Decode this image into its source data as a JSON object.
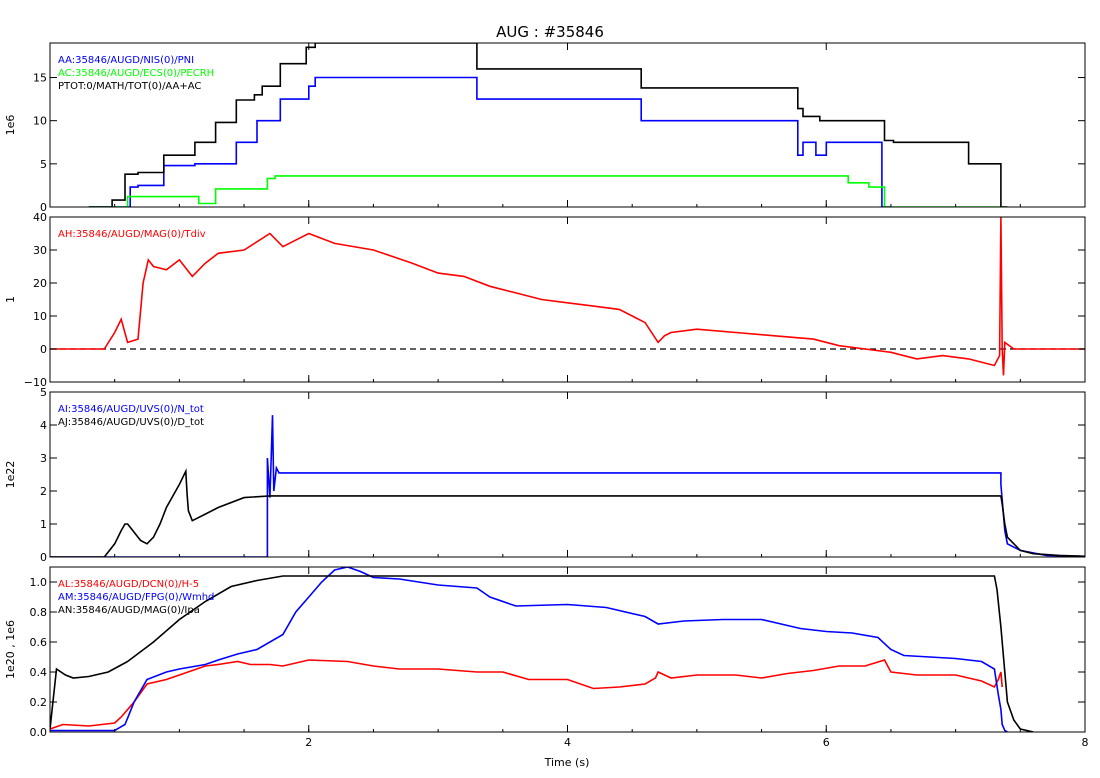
{
  "title": "AUG : #35846",
  "xlabel": "Time (s)",
  "colors": {
    "black": "#000000",
    "blue": "#0000ff",
    "green": "#00ff00",
    "red": "#ff0000"
  },
  "chart_data": [
    {
      "type": "line",
      "ylabel": "1e6",
      "xlim": [
        0,
        8
      ],
      "ylim": [
        0,
        19
      ],
      "xticks": [
        {
          "v": 0,
          "label": ""
        },
        {
          "v": 2,
          "label": ""
        },
        {
          "v": 4,
          "label": ""
        },
        {
          "v": 6,
          "label": ""
        },
        {
          "v": 8,
          "label": ""
        }
      ],
      "yticks": [
        {
          "v": 0,
          "label": "0"
        },
        {
          "v": 5,
          "label": "5"
        },
        {
          "v": 10,
          "label": "10"
        },
        {
          "v": 15,
          "label": "15"
        }
      ],
      "series": [
        {
          "name": "AA:35846/AUGD/NIS(0)/PNI",
          "color": "#0000ff",
          "x": [
            0.3,
            0.62,
            0.62,
            0.68,
            0.68,
            0.88,
            0.88,
            1.12,
            1.12,
            1.44,
            1.44,
            1.6,
            1.6,
            1.78,
            1.78,
            2.0,
            2.0,
            2.05,
            2.05,
            3.3,
            3.3,
            4.57,
            4.57,
            5.78,
            5.78,
            5.82,
            5.82,
            5.92,
            5.92,
            6.0,
            6.0,
            6.43,
            6.43,
            6.5
          ],
          "y": [
            0,
            0,
            2.3,
            2.3,
            2.5,
            2.5,
            4.8,
            4.8,
            5.0,
            5.0,
            7.5,
            7.5,
            10.0,
            10.0,
            12.5,
            12.5,
            14.0,
            14.0,
            15.0,
            15.0,
            12.5,
            12.5,
            10.0,
            10.0,
            6.0,
            6.0,
            7.5,
            7.5,
            6.0,
            6.0,
            7.5,
            7.5,
            0,
            0
          ]
        },
        {
          "name": "AC:35846/AUGD/ECS(0)/PECRH",
          "color": "#00ff00",
          "x": [
            0.3,
            0.6,
            0.6,
            1.15,
            1.15,
            1.28,
            1.28,
            1.68,
            1.68,
            1.74,
            1.74,
            6.17,
            6.17,
            6.33,
            6.33,
            6.45,
            6.45,
            7.4
          ],
          "y": [
            0,
            0,
            1.2,
            1.2,
            0.4,
            0.4,
            2.1,
            2.1,
            3.3,
            3.3,
            3.6,
            3.6,
            2.8,
            2.8,
            2.3,
            2.3,
            0,
            0
          ]
        },
        {
          "name": "PTOT:0/MATH/TOT(0)/AA+AC",
          "color": "#000000",
          "x": [
            0.3,
            0.48,
            0.48,
            0.58,
            0.58,
            0.68,
            0.68,
            0.88,
            0.88,
            1.12,
            1.12,
            1.28,
            1.28,
            1.44,
            1.44,
            1.58,
            1.58,
            1.64,
            1.64,
            1.78,
            1.78,
            1.98,
            1.98,
            2.05,
            2.05,
            3.3,
            3.3,
            4.57,
            4.57,
            5.78,
            5.78,
            5.82,
            5.82,
            5.95,
            5.95,
            6.45,
            6.45,
            6.52,
            6.52,
            7.1,
            7.1,
            7.35,
            7.35,
            7.4
          ],
          "y": [
            0,
            0,
            0.8,
            0.8,
            3.8,
            3.8,
            4.0,
            4.0,
            6.0,
            6.0,
            7.5,
            7.5,
            9.8,
            9.8,
            12.4,
            12.4,
            13.0,
            13.0,
            14.0,
            14.0,
            16.6,
            16.6,
            18.5,
            18.5,
            19.0,
            19.0,
            16.0,
            16.0,
            13.8,
            13.8,
            11.4,
            11.4,
            10.5,
            10.5,
            10.0,
            10.0,
            7.7,
            7.7,
            7.5,
            7.5,
            5.0,
            5.0,
            0,
            0
          ]
        }
      ]
    },
    {
      "type": "line",
      "ylabel": "1",
      "xlim": [
        0,
        8
      ],
      "ylim": [
        -10,
        40
      ],
      "xticks": [
        {
          "v": 0,
          "label": ""
        },
        {
          "v": 2,
          "label": ""
        },
        {
          "v": 4,
          "label": ""
        },
        {
          "v": 6,
          "label": ""
        },
        {
          "v": 8,
          "label": ""
        }
      ],
      "yticks": [
        {
          "v": -10,
          "label": "−10"
        },
        {
          "v": 0,
          "label": "0"
        },
        {
          "v": 10,
          "label": "10"
        },
        {
          "v": 20,
          "label": "20"
        },
        {
          "v": 30,
          "label": "30"
        },
        {
          "v": 40,
          "label": "40"
        }
      ],
      "zero_line": true,
      "series": [
        {
          "name": "AH:35846/AUGD/MAG(0)/Tdiv",
          "color": "#ff0000",
          "x": [
            0,
            0.3,
            0.42,
            0.5,
            0.55,
            0.6,
            0.68,
            0.72,
            0.76,
            0.8,
            0.9,
            1.0,
            1.1,
            1.2,
            1.3,
            1.5,
            1.7,
            1.8,
            1.9,
            2.0,
            2.2,
            2.5,
            2.8,
            3.0,
            3.2,
            3.4,
            3.6,
            3.8,
            4.0,
            4.2,
            4.4,
            4.6,
            4.7,
            4.75,
            4.8,
            5.0,
            5.3,
            5.6,
            5.9,
            6.1,
            6.3,
            6.5,
            6.7,
            6.9,
            7.1,
            7.3,
            7.34,
            7.35,
            7.36,
            7.37,
            7.38,
            7.45,
            7.6,
            8.0
          ],
          "y": [
            0,
            0,
            0,
            5,
            9,
            2,
            3,
            20,
            27,
            25,
            24,
            27,
            22,
            26,
            29,
            30,
            35,
            31,
            33,
            35,
            32,
            30,
            26,
            23,
            22,
            19,
            17,
            15,
            14,
            13,
            12,
            8,
            2,
            4,
            5,
            6,
            5,
            4,
            3,
            1,
            0,
            -1,
            -3,
            -2,
            -3,
            -5,
            -2,
            40,
            0,
            -8,
            2,
            0,
            0,
            0
          ]
        }
      ]
    },
    {
      "type": "line",
      "ylabel": "1e22",
      "xlim": [
        0,
        8
      ],
      "ylim": [
        0,
        5
      ],
      "xticks": [
        {
          "v": 0,
          "label": ""
        },
        {
          "v": 2,
          "label": ""
        },
        {
          "v": 4,
          "label": ""
        },
        {
          "v": 6,
          "label": ""
        },
        {
          "v": 8,
          "label": ""
        }
      ],
      "yticks": [
        {
          "v": 0,
          "label": "0"
        },
        {
          "v": 1,
          "label": "1"
        },
        {
          "v": 2,
          "label": "2"
        },
        {
          "v": 3,
          "label": "3"
        },
        {
          "v": 4,
          "label": "4"
        },
        {
          "v": 5,
          "label": "5"
        }
      ],
      "series": [
        {
          "name": "AI:35846/AUGD/UVS(0)/N_tot",
          "color": "#0000ff",
          "x": [
            0,
            1.68,
            1.68,
            1.7,
            1.71,
            1.72,
            1.73,
            1.75,
            1.77,
            1.8,
            7.35,
            7.35,
            7.38,
            7.4,
            7.5,
            7.7,
            8.0
          ],
          "y": [
            0,
            0,
            3.0,
            1.8,
            3.0,
            4.3,
            2.0,
            2.7,
            2.55,
            2.55,
            2.55,
            2.2,
            0.8,
            0.4,
            0.2,
            0.05,
            0.02
          ]
        },
        {
          "name": "AJ:35846/AUGD/UVS(0)/D_tot",
          "color": "#000000",
          "x": [
            0,
            0.42,
            0.5,
            0.55,
            0.58,
            0.6,
            0.62,
            0.7,
            0.75,
            0.8,
            0.85,
            0.9,
            1.0,
            1.05,
            1.06,
            1.07,
            1.1,
            1.2,
            1.3,
            1.5,
            1.7,
            1.8,
            2.5,
            7.35,
            7.36,
            7.38,
            7.4,
            7.5,
            7.6,
            7.8,
            8.0
          ],
          "y": [
            0,
            0,
            0.4,
            0.8,
            1.0,
            1.0,
            0.9,
            0.5,
            0.4,
            0.6,
            1.0,
            1.5,
            2.2,
            2.6,
            1.9,
            1.4,
            1.1,
            1.3,
            1.5,
            1.8,
            1.85,
            1.85,
            1.85,
            1.85,
            1.6,
            1.0,
            0.6,
            0.2,
            0.1,
            0.05,
            0.02
          ]
        }
      ]
    },
    {
      "type": "line",
      "ylabel": "1e20 , 1e6",
      "xlim": [
        0,
        8
      ],
      "ylim": [
        0,
        1.1
      ],
      "xticks": [
        {
          "v": 0,
          "label": ""
        },
        {
          "v": 2,
          "label": "2"
        },
        {
          "v": 4,
          "label": "4"
        },
        {
          "v": 6,
          "label": "6"
        },
        {
          "v": 8,
          "label": "8"
        }
      ],
      "yticks": [
        {
          "v": 0,
          "label": "0.0"
        },
        {
          "v": 0.2,
          "label": "0.2"
        },
        {
          "v": 0.4,
          "label": "0.4"
        },
        {
          "v": 0.6,
          "label": "0.6"
        },
        {
          "v": 0.8,
          "label": "0.8"
        },
        {
          "v": 1.0,
          "label": "1.0"
        }
      ],
      "series": [
        {
          "name": "AL:35846/AUGD/DCN(0)/H-5",
          "color": "#ff0000",
          "x": [
            0,
            0.1,
            0.3,
            0.5,
            0.55,
            0.65,
            0.75,
            0.9,
            1.0,
            1.2,
            1.3,
            1.45,
            1.55,
            1.7,
            1.8,
            2.0,
            2.3,
            2.5,
            2.7,
            3.0,
            3.3,
            3.5,
            3.7,
            4.0,
            4.2,
            4.4,
            4.6,
            4.68,
            4.7,
            4.8,
            5.0,
            5.3,
            5.5,
            5.7,
            5.9,
            6.1,
            6.3,
            6.45,
            6.5,
            6.7,
            7.0,
            7.2,
            7.3,
            7.33,
            7.35,
            7.36
          ],
          "y": [
            0.02,
            0.05,
            0.04,
            0.06,
            0.1,
            0.2,
            0.32,
            0.35,
            0.38,
            0.44,
            0.45,
            0.47,
            0.45,
            0.45,
            0.44,
            0.48,
            0.47,
            0.44,
            0.42,
            0.42,
            0.4,
            0.4,
            0.35,
            0.35,
            0.29,
            0.3,
            0.32,
            0.36,
            0.4,
            0.36,
            0.38,
            0.38,
            0.36,
            0.39,
            0.41,
            0.44,
            0.44,
            0.48,
            0.4,
            0.38,
            0.38,
            0.34,
            0.3,
            0.35,
            0.4,
            0.3
          ]
        },
        {
          "name": "AM:35846/AUGD/FPG(0)/Wmhd",
          "color": "#0000ff",
          "x": [
            0,
            0.5,
            0.58,
            0.65,
            0.75,
            0.9,
            1.0,
            1.2,
            1.3,
            1.45,
            1.6,
            1.8,
            1.9,
            2.0,
            2.1,
            2.2,
            2.3,
            2.4,
            2.5,
            2.7,
            3.0,
            3.3,
            3.4,
            3.6,
            4.0,
            4.3,
            4.6,
            4.7,
            4.9,
            5.2,
            5.5,
            5.8,
            6.0,
            6.2,
            6.4,
            6.5,
            6.6,
            6.8,
            7.0,
            7.2,
            7.3,
            7.33,
            7.35,
            7.36,
            7.38,
            7.4
          ],
          "y": [
            0.01,
            0.01,
            0.05,
            0.2,
            0.35,
            0.4,
            0.42,
            0.45,
            0.48,
            0.52,
            0.55,
            0.65,
            0.8,
            0.9,
            1.0,
            1.08,
            1.1,
            1.07,
            1.03,
            1.02,
            0.98,
            0.96,
            0.9,
            0.84,
            0.85,
            0.83,
            0.77,
            0.72,
            0.74,
            0.75,
            0.75,
            0.69,
            0.67,
            0.66,
            0.63,
            0.55,
            0.51,
            0.5,
            0.49,
            0.47,
            0.42,
            0.25,
            0.15,
            0.05,
            0.01,
            0.0
          ]
        },
        {
          "name": "AN:35846/AUGD/MAG(0)/Ipa",
          "color": "#000000",
          "x": [
            0,
            0.05,
            0.12,
            0.18,
            0.3,
            0.45,
            0.6,
            0.8,
            1.0,
            1.2,
            1.4,
            1.6,
            1.8,
            2.0,
            7.3,
            7.32,
            7.35,
            7.38,
            7.4,
            7.45,
            7.5,
            7.6
          ],
          "y": [
            0.02,
            0.42,
            0.38,
            0.36,
            0.37,
            0.4,
            0.47,
            0.6,
            0.75,
            0.87,
            0.97,
            1.01,
            1.04,
            1.04,
            1.04,
            0.95,
            0.7,
            0.4,
            0.2,
            0.08,
            0.02,
            0.0
          ]
        }
      ]
    }
  ]
}
